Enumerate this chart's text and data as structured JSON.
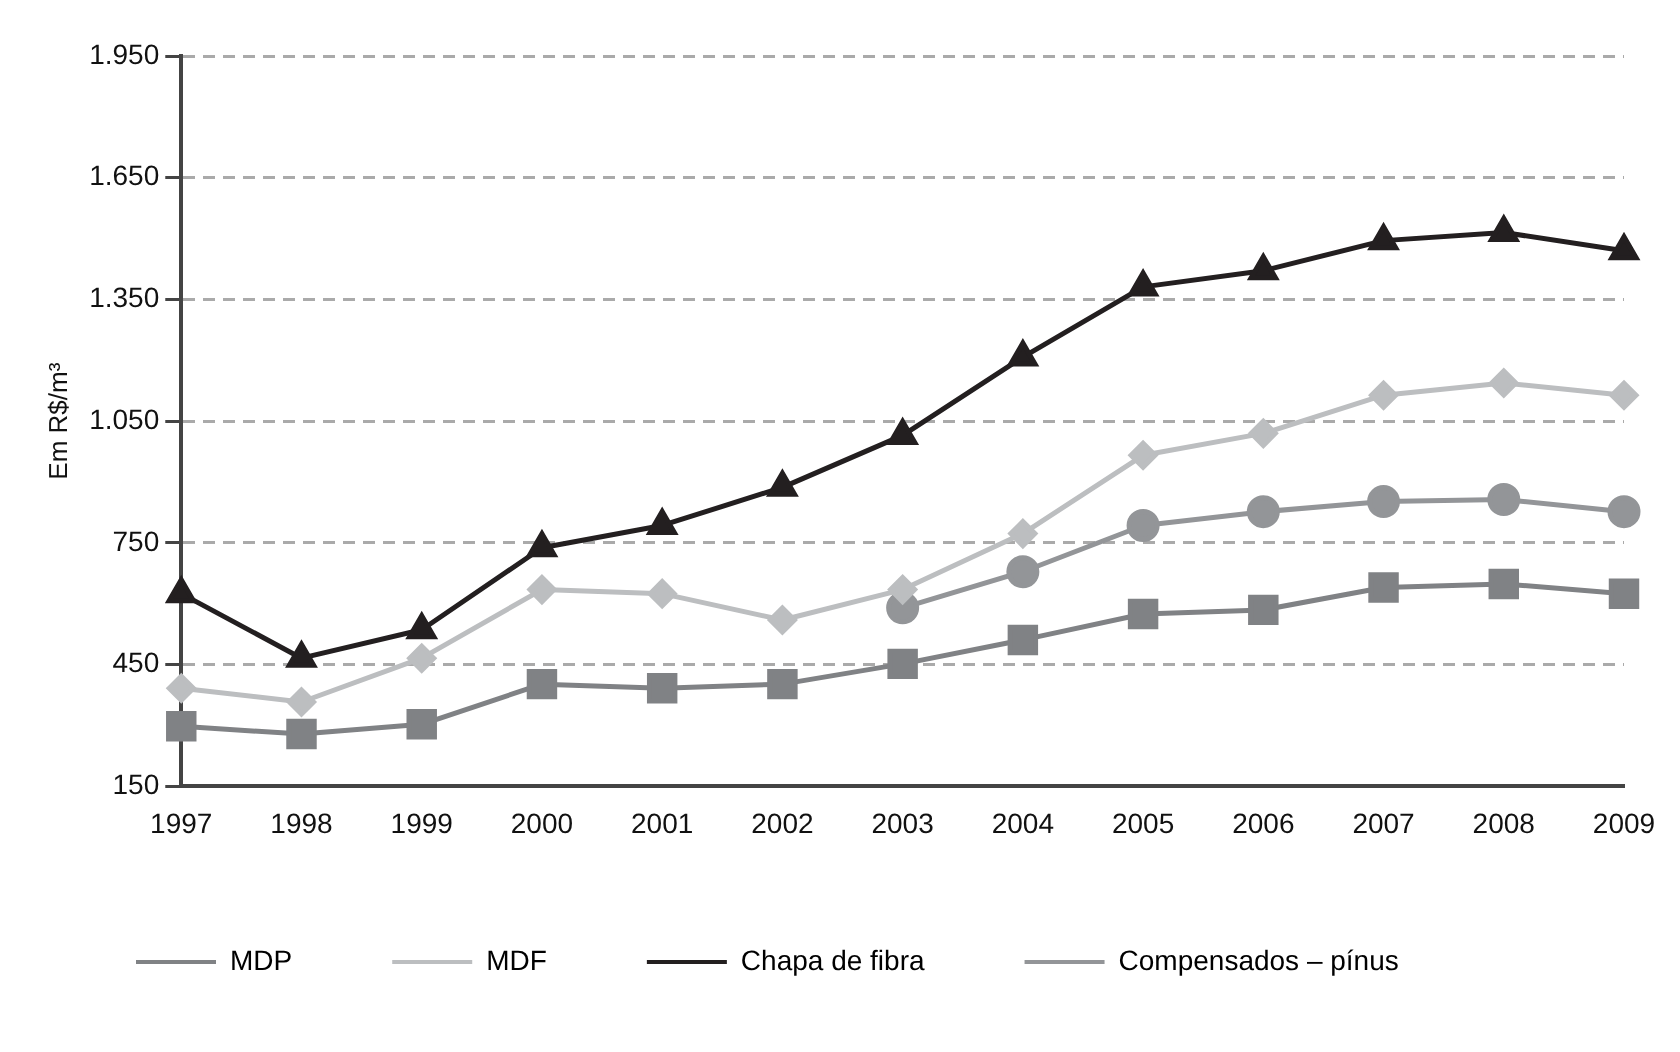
{
  "chart_data": {
    "type": "line",
    "ylabel": "Em R$/m³",
    "categories": [
      "1997",
      "1998",
      "1999",
      "2000",
      "2001",
      "2002",
      "2003",
      "2004",
      "2005",
      "2006",
      "2007",
      "2008",
      "2009"
    ],
    "series": [
      {
        "name": "MDP",
        "color": "#808285",
        "marker": "square",
        "values": [
          298,
          279,
          303,
          402,
          392,
          402,
          452,
          511,
          575,
          585,
          640,
          649,
          625
        ]
      },
      {
        "name": "MDF",
        "color": "#bcbec0",
        "marker": "diamond",
        "values": [
          392,
          358,
          466,
          635,
          625,
          560,
          635,
          773,
          966,
          1020,
          1114,
          1144,
          1114
        ]
      },
      {
        "name": "Chapa de fibra",
        "color": "#231f20",
        "marker": "triangle",
        "values": [
          625,
          466,
          536,
          738,
          793,
          887,
          1015,
          1208,
          1381,
          1421,
          1495,
          1515,
          1470
        ]
      },
      {
        "name": "Compensados – pínus",
        "color": "#939598",
        "marker": "circle",
        "values": [
          null,
          null,
          null,
          null,
          null,
          null,
          590,
          679,
          793,
          827,
          852,
          857,
          827
        ]
      }
    ],
    "ylim": [
      150,
      1950
    ],
    "yticks": [
      {
        "value": 150,
        "label": "150"
      },
      {
        "value": 450,
        "label": "450"
      },
      {
        "value": 750,
        "label": "750"
      },
      {
        "value": 1050,
        "label": "1.050"
      },
      {
        "value": 1350,
        "label": "1.350"
      },
      {
        "value": 1650,
        "label": "1.650"
      },
      {
        "value": 1950,
        "label": "1.950"
      }
    ],
    "grid": "y",
    "legend": "bottom"
  }
}
